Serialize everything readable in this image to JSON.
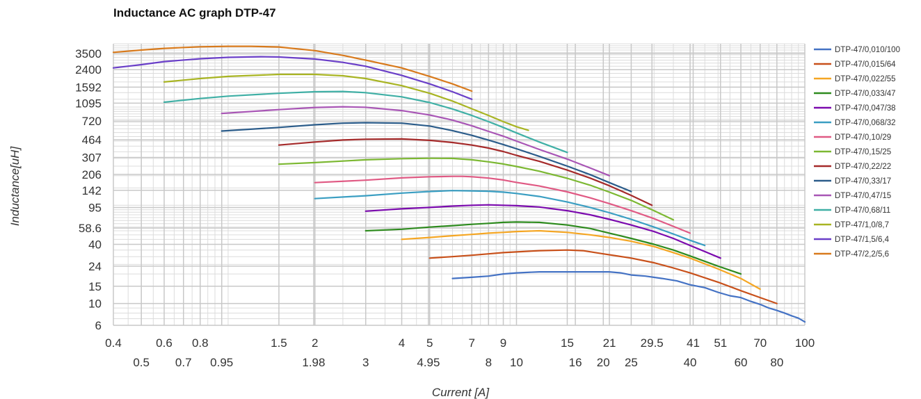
{
  "chart_data": {
    "type": "line",
    "title": "Inductance AC graph DTP-47",
    "xlabel": "Current [A]",
    "ylabel": "Inductance[uH]",
    "xscale": "log",
    "yscale": "log",
    "xlim": [
      0.4,
      100
    ],
    "ylim": [
      6,
      4400
    ],
    "grid": true,
    "legend": "right",
    "x_ticks_row1": [
      "0.4",
      "0.6",
      "0.8",
      "1.5",
      "2",
      "4",
      "5",
      "7",
      "9",
      "15",
      "21",
      "29.5",
      "41",
      "51",
      "70",
      "100"
    ],
    "x_ticks_row2": [
      "0.5",
      "0.7",
      "0.95",
      "1.98",
      "3",
      "4.95",
      "8",
      "10",
      "16",
      "20",
      "25",
      "40",
      "60",
      "80"
    ],
    "y_ticks": [
      "3500",
      "2400",
      "1592",
      "1095",
      "720",
      "464",
      "307",
      "206",
      "142",
      "95",
      "58.6",
      "40",
      "24",
      "15",
      "10",
      "6"
    ],
    "series": [
      {
        "name": "DTP-47/0,010/100",
        "color": "#4472C4",
        "x": [
          6,
          7,
          8,
          9,
          10,
          12,
          15,
          18,
          21,
          23,
          25,
          28,
          32,
          36,
          40,
          45,
          50,
          55,
          60,
          65,
          70,
          75,
          80,
          85,
          90,
          95,
          100
        ],
        "y": [
          18,
          18.5,
          19,
          20,
          20.5,
          21,
          21,
          21,
          21,
          20.5,
          19.5,
          19,
          18,
          17,
          15.5,
          14.5,
          13,
          12,
          11.5,
          10.5,
          9.8,
          9,
          8.5,
          8,
          7.5,
          7.1,
          6.5
        ]
      },
      {
        "name": "DTP-47/0,015/64",
        "color": "#C8501A",
        "x": [
          5,
          6,
          7,
          8,
          9,
          10,
          12,
          15,
          17,
          20,
          25,
          30,
          35,
          40,
          50,
          60,
          70,
          80
        ],
        "y": [
          29,
          30,
          31,
          32,
          33,
          33.5,
          34.5,
          35,
          34.5,
          32,
          29,
          26,
          23,
          20.5,
          16.5,
          13.5,
          11.5,
          10
        ]
      },
      {
        "name": "DTP-47/0,022/55",
        "color": "#F5A623",
        "x": [
          4,
          5,
          6,
          7,
          8,
          9,
          10,
          12,
          15,
          18,
          21,
          25,
          30,
          35,
          40,
          50,
          60,
          70
        ],
        "y": [
          45,
          47,
          49,
          50.5,
          52,
          53,
          54,
          55,
          53,
          50,
          47,
          43,
          38,
          33,
          29,
          22.5,
          18,
          14
        ]
      },
      {
        "name": "DTP-47/0,033/47",
        "color": "#2E8B1E",
        "x": [
          3,
          4,
          5,
          6,
          7,
          8,
          9,
          10,
          12,
          15,
          18,
          21,
          25,
          30,
          35,
          40,
          50,
          60
        ],
        "y": [
          55,
          57,
          60,
          62,
          64,
          65.5,
          67,
          67.5,
          67,
          63,
          58,
          52,
          46,
          40,
          35,
          30.5,
          24,
          20
        ]
      },
      {
        "name": "DTP-47/0,047/38",
        "color": "#7B0AAE",
        "x": [
          3,
          4,
          5,
          6,
          7,
          8,
          9,
          10,
          12,
          15,
          18,
          21,
          25,
          30,
          35,
          40,
          51
        ],
        "y": [
          87,
          92,
          95,
          98,
          100,
          101,
          100,
          99,
          96,
          88,
          80,
          72,
          63,
          54,
          46,
          39,
          29
        ]
      },
      {
        "name": "DTP-47/0,068/32",
        "color": "#3A9EC2",
        "x": [
          2,
          3,
          4,
          5,
          6,
          7,
          8,
          9,
          10,
          12,
          15,
          18,
          21,
          25,
          30,
          35,
          40,
          45
        ],
        "y": [
          117,
          125,
          133,
          138,
          141,
          140,
          139,
          136,
          132,
          123,
          108,
          95,
          84,
          72,
          60,
          51,
          44,
          39
        ]
      },
      {
        "name": "DTP-47/0,10/29",
        "color": "#E05A84",
        "x": [
          2,
          3,
          4,
          5,
          6,
          6.5,
          7,
          8,
          9,
          10,
          12,
          15,
          18,
          21,
          25,
          30,
          35,
          40
        ],
        "y": [
          170,
          180,
          190,
          195,
          197,
          197,
          195,
          189,
          181,
          171,
          157,
          137,
          119,
          104,
          88,
          73,
          61,
          52
        ]
      },
      {
        "name": "DTP-47/0,15/25",
        "color": "#7CB832",
        "x": [
          1.5,
          2,
          3,
          4,
          5,
          6,
          7,
          8,
          9,
          10,
          12,
          15,
          18,
          21,
          25,
          30,
          35
        ],
        "y": [
          262,
          272,
          290,
          298,
          301,
          300,
          290,
          277,
          263,
          248,
          222,
          188,
          160,
          136,
          112,
          88,
          71
        ]
      },
      {
        "name": "DTP-47/0,22/22",
        "color": "#A52A2A",
        "x": [
          1.5,
          2,
          2.5,
          3,
          4,
          5,
          6,
          7,
          8,
          9,
          10,
          12,
          15,
          18,
          21,
          25,
          29.5
        ],
        "y": [
          410,
          440,
          462,
          470,
          473,
          458,
          435,
          410,
          382,
          352,
          322,
          280,
          228,
          189,
          158,
          126,
          100
        ]
      },
      {
        "name": "DTP-47/0,33/17",
        "color": "#2B5C8A",
        "x": [
          0.95,
          1.5,
          2,
          2.5,
          3,
          4,
          5,
          6,
          7,
          8,
          9,
          10,
          12,
          15,
          18,
          21,
          25
        ],
        "y": [
          570,
          620,
          660,
          685,
          693,
          685,
          640,
          575,
          515,
          460,
          415,
          376,
          315,
          250,
          205,
          170,
          138
        ]
      },
      {
        "name": "DTP-47/0,47/15",
        "color": "#A855B5",
        "x": [
          0.95,
          1.5,
          2,
          2.5,
          3,
          4,
          5,
          6,
          7,
          8,
          9,
          10,
          12,
          15,
          18,
          21
        ],
        "y": [
          860,
          940,
          990,
          1005,
          995,
          920,
          830,
          735,
          645,
          565,
          505,
          450,
          370,
          295,
          240,
          200
        ]
      },
      {
        "name": "DTP-47/0,68/11",
        "color": "#3FAFA5",
        "x": [
          0.6,
          0.8,
          1,
          1.5,
          2,
          2.5,
          3,
          4,
          5,
          6,
          7,
          8,
          9,
          10,
          12,
          15
        ],
        "y": [
          1120,
          1220,
          1290,
          1380,
          1430,
          1440,
          1400,
          1270,
          1110,
          955,
          820,
          710,
          620,
          545,
          440,
          345
        ]
      },
      {
        "name": "DTP-47/1,0/8,7",
        "color": "#A8B422",
        "x": [
          0.6,
          0.8,
          1,
          1.5,
          2,
          2.5,
          3,
          4,
          5,
          6,
          7,
          8,
          9,
          10,
          11
        ],
        "y": [
          1800,
          1950,
          2050,
          2150,
          2150,
          2080,
          1950,
          1650,
          1380,
          1150,
          960,
          820,
          710,
          630,
          580
        ]
      },
      {
        "name": "DTP-47/1,5/6,4",
        "color": "#6A3FC8",
        "x": [
          0.4,
          0.5,
          0.6,
          0.8,
          1,
          1.3,
          1.5,
          2,
          2.5,
          3,
          4,
          5,
          6,
          7
        ],
        "y": [
          2500,
          2700,
          2900,
          3100,
          3200,
          3250,
          3230,
          3080,
          2850,
          2600,
          2100,
          1720,
          1430,
          1200
        ]
      },
      {
        "name": "DTP-47/2,2/5,6",
        "color": "#D87A1C",
        "x": [
          0.4,
          0.5,
          0.6,
          0.8,
          1,
          1.2,
          1.5,
          2,
          2.5,
          3,
          4,
          5,
          6,
          7
        ],
        "y": [
          3600,
          3800,
          3950,
          4100,
          4150,
          4150,
          4080,
          3750,
          3350,
          3000,
          2500,
          2050,
          1720,
          1450
        ]
      }
    ]
  }
}
